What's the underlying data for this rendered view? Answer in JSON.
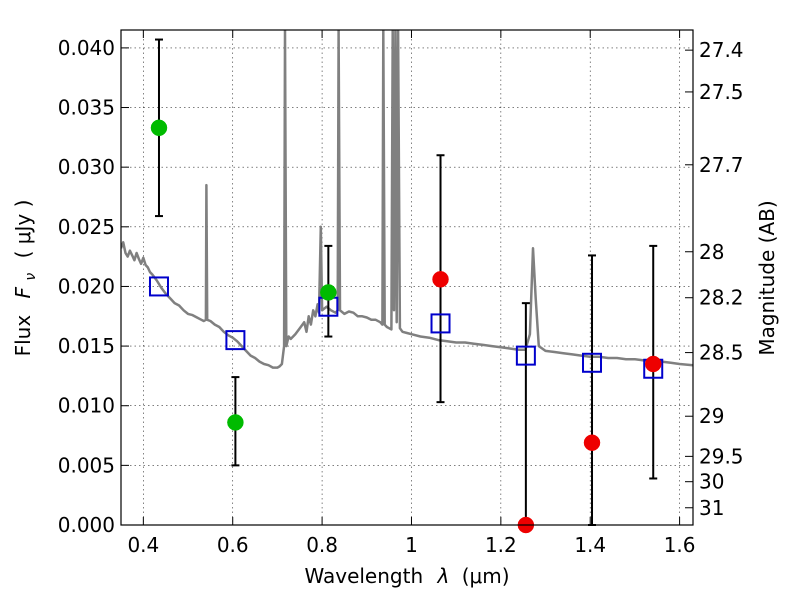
{
  "chart_data": {
    "type": "scatter",
    "xlabel_text": "Wavelength",
    "xlabel_symbol": "λ",
    "xlabel_unit": "(μm)",
    "ylabel_text": "Flux",
    "ylabel_symbol": "F",
    "ylabel_sub": "ν",
    "ylabel_unit": "( μJy )",
    "y2label": "Magnitude (AB)",
    "xlim": [
      0.35,
      1.63
    ],
    "ylim": [
      0.0,
      0.0415
    ],
    "grid": true,
    "x_ticks": [
      {
        "value": 0.4,
        "label": "0.4"
      },
      {
        "value": 0.6,
        "label": "0.6"
      },
      {
        "value": 0.8,
        "label": "0.8"
      },
      {
        "value": 1.0,
        "label": "1"
      },
      {
        "value": 1.2,
        "label": "1.2"
      },
      {
        "value": 1.4,
        "label": "1.4"
      },
      {
        "value": 1.6,
        "label": "1.6"
      }
    ],
    "y_ticks": [
      {
        "value": 0.0,
        "label": "0.000"
      },
      {
        "value": 0.005,
        "label": "0.005"
      },
      {
        "value": 0.01,
        "label": "0.010"
      },
      {
        "value": 0.015,
        "label": "0.015"
      },
      {
        "value": 0.02,
        "label": "0.020"
      },
      {
        "value": 0.025,
        "label": "0.025"
      },
      {
        "value": 0.03,
        "label": "0.030"
      },
      {
        "value": 0.035,
        "label": "0.035"
      },
      {
        "value": 0.04,
        "label": "0.040"
      }
    ],
    "mag_ticks": [
      {
        "value": 27.4,
        "label": "27.4"
      },
      {
        "value": 27.5,
        "label": "27.5"
      },
      {
        "value": 27.7,
        "label": "27.7"
      },
      {
        "value": 28.0,
        "label": "28"
      },
      {
        "value": 28.2,
        "label": "28.2"
      },
      {
        "value": 28.5,
        "label": "28.5"
      },
      {
        "value": 29.0,
        "label": "29"
      },
      {
        "value": 29.5,
        "label": "29.5"
      },
      {
        "value": 30.0,
        "label": "30"
      },
      {
        "value": 31.0,
        "label": "31"
      }
    ],
    "model_spectrum": {
      "color": "#808080",
      "points": [
        [
          0.35,
          0.0232
        ],
        [
          0.355,
          0.0237
        ],
        [
          0.36,
          0.0228
        ],
        [
          0.365,
          0.0225
        ],
        [
          0.37,
          0.023
        ],
        [
          0.375,
          0.0226
        ],
        [
          0.38,
          0.0222
        ],
        [
          0.385,
          0.0228
        ],
        [
          0.39,
          0.0223
        ],
        [
          0.395,
          0.0219
        ],
        [
          0.4,
          0.0224
        ],
        [
          0.405,
          0.0218
        ],
        [
          0.41,
          0.0216
        ],
        [
          0.415,
          0.0212
        ],
        [
          0.42,
          0.021
        ],
        [
          0.43,
          0.0205
        ],
        [
          0.44,
          0.0199
        ],
        [
          0.45,
          0.0194
        ],
        [
          0.46,
          0.019
        ],
        [
          0.47,
          0.0186
        ],
        [
          0.48,
          0.0184
        ],
        [
          0.49,
          0.018
        ],
        [
          0.5,
          0.0177
        ],
        [
          0.51,
          0.0176
        ],
        [
          0.52,
          0.0174
        ],
        [
          0.53,
          0.0172
        ],
        [
          0.535,
          0.0171
        ],
        [
          0.54,
          0.0172
        ],
        [
          0.541,
          0.0285
        ],
        [
          0.543,
          0.0172
        ],
        [
          0.55,
          0.0171
        ],
        [
          0.56,
          0.0168
        ],
        [
          0.57,
          0.0166
        ],
        [
          0.58,
          0.0162
        ],
        [
          0.59,
          0.0159
        ],
        [
          0.6,
          0.0157
        ],
        [
          0.61,
          0.0154
        ],
        [
          0.62,
          0.015
        ],
        [
          0.63,
          0.0146
        ],
        [
          0.64,
          0.0142
        ],
        [
          0.65,
          0.014
        ],
        [
          0.66,
          0.0137
        ],
        [
          0.67,
          0.0135
        ],
        [
          0.68,
          0.0134
        ],
        [
          0.69,
          0.0132
        ],
        [
          0.7,
          0.0132
        ],
        [
          0.705,
          0.0133
        ],
        [
          0.71,
          0.0135
        ],
        [
          0.715,
          0.015
        ],
        [
          0.717,
          0.0415
        ],
        [
          0.72,
          0.015
        ],
        [
          0.725,
          0.0158
        ],
        [
          0.73,
          0.0156
        ],
        [
          0.74,
          0.016
        ],
        [
          0.75,
          0.0165
        ],
        [
          0.76,
          0.017
        ],
        [
          0.765,
          0.0162
        ],
        [
          0.77,
          0.0175
        ],
        [
          0.775,
          0.0168
        ],
        [
          0.78,
          0.018
        ],
        [
          0.785,
          0.0175
        ],
        [
          0.79,
          0.0185
        ],
        [
          0.793,
          0.0178
        ],
        [
          0.797,
          0.025
        ],
        [
          0.8,
          0.018
        ],
        [
          0.81,
          0.0183
        ],
        [
          0.82,
          0.018
        ],
        [
          0.83,
          0.0178
        ],
        [
          0.835,
          0.018
        ],
        [
          0.837,
          0.0415
        ],
        [
          0.84,
          0.018
        ],
        [
          0.85,
          0.0177
        ],
        [
          0.86,
          0.0179
        ],
        [
          0.87,
          0.0178
        ],
        [
          0.88,
          0.0175
        ],
        [
          0.89,
          0.0175
        ],
        [
          0.9,
          0.0174
        ],
        [
          0.91,
          0.0172
        ],
        [
          0.92,
          0.0172
        ],
        [
          0.93,
          0.017
        ],
        [
          0.935,
          0.0168
        ],
        [
          0.937,
          0.0415
        ],
        [
          0.94,
          0.0168
        ],
        [
          0.945,
          0.0166
        ],
        [
          0.95,
          0.0165
        ],
        [
          0.955,
          0.0164
        ],
        [
          0.958,
          0.0415
        ],
        [
          0.961,
          0.018
        ],
        [
          0.964,
          0.0415
        ],
        [
          0.967,
          0.017
        ],
        [
          0.97,
          0.0415
        ],
        [
          0.974,
          0.0165
        ],
        [
          0.98,
          0.0162
        ],
        [
          0.99,
          0.0161
        ],
        [
          1.0,
          0.016
        ],
        [
          1.02,
          0.0158
        ],
        [
          1.04,
          0.0157
        ],
        [
          1.06,
          0.0155
        ],
        [
          1.08,
          0.0154
        ],
        [
          1.1,
          0.0153
        ],
        [
          1.12,
          0.0153
        ],
        [
          1.14,
          0.0152
        ],
        [
          1.16,
          0.0151
        ],
        [
          1.18,
          0.015
        ],
        [
          1.2,
          0.0149
        ],
        [
          1.22,
          0.0148
        ],
        [
          1.24,
          0.0147
        ],
        [
          1.255,
          0.0147
        ],
        [
          1.265,
          0.016
        ],
        [
          1.272,
          0.0232
        ],
        [
          1.278,
          0.019
        ],
        [
          1.285,
          0.015
        ],
        [
          1.3,
          0.0146
        ],
        [
          1.32,
          0.0145
        ],
        [
          1.34,
          0.0144
        ],
        [
          1.36,
          0.0143
        ],
        [
          1.38,
          0.0142
        ],
        [
          1.4,
          0.0141
        ],
        [
          1.42,
          0.0141
        ],
        [
          1.44,
          0.014
        ],
        [
          1.46,
          0.014
        ],
        [
          1.48,
          0.0139
        ],
        [
          1.5,
          0.0139
        ],
        [
          1.52,
          0.0138
        ],
        [
          1.54,
          0.0137
        ],
        [
          1.56,
          0.0137
        ],
        [
          1.58,
          0.0136
        ],
        [
          1.6,
          0.0135
        ],
        [
          1.63,
          0.0134
        ]
      ]
    },
    "model_photometry": {
      "color": "#0000cc",
      "marker": "open-square",
      "points": [
        [
          0.435,
          0.02
        ],
        [
          0.606,
          0.0155
        ],
        [
          0.814,
          0.0183
        ],
        [
          1.065,
          0.0169
        ],
        [
          1.256,
          0.0142
        ],
        [
          1.404,
          0.0136
        ],
        [
          1.541,
          0.0131
        ]
      ]
    },
    "series": [
      {
        "color": "#00bb00",
        "marker": "filled-circle",
        "points": [
          {
            "x": 0.435,
            "y": 0.0333,
            "err_low": 0.0259,
            "err_high": 0.0407
          },
          {
            "x": 0.606,
            "y": 0.0086,
            "err_low": 0.005,
            "err_high": 0.0124
          },
          {
            "x": 0.814,
            "y": 0.0195,
            "err_low": 0.0158,
            "err_high": 0.0234
          }
        ]
      },
      {
        "color": "#ee0000",
        "marker": "filled-circle",
        "points": [
          {
            "x": 1.065,
            "y": 0.0206,
            "err_low": 0.0103,
            "err_high": 0.031
          },
          {
            "x": 1.256,
            "y": 0.0,
            "err_low": 0.0,
            "err_high": 0.0186
          },
          {
            "x": 1.404,
            "y": 0.0069,
            "err_low": 0.0,
            "err_high": 0.0226
          },
          {
            "x": 1.541,
            "y": 0.0135,
            "err_low": 0.0039,
            "err_high": 0.0234
          }
        ]
      }
    ]
  }
}
